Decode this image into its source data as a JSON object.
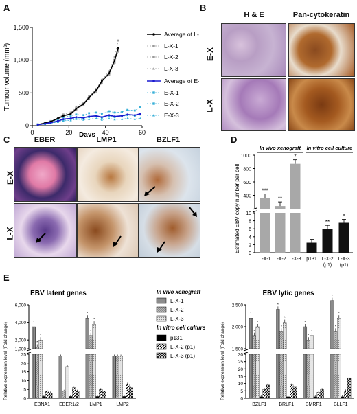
{
  "panels": {
    "a": "A",
    "b": "B",
    "c": "C",
    "d": "D",
    "e": "E"
  },
  "colors": {
    "lx": "#000000",
    "lx_series": "#9a9a9a",
    "ex": "#1a1ad0",
    "ex_series": "#39b0d8",
    "bar_grey": "#a8a8a8",
    "bar_black": "#111111"
  },
  "chart_data": [
    {
      "type": "line",
      "ylabel": "Tumour volume (mm³)",
      "xlabel": "Days",
      "xlim": [
        0,
        60
      ],
      "ylim": [
        0,
        1500
      ],
      "xticks": [
        0,
        20,
        40,
        60
      ],
      "yticks": [
        "0",
        "500",
        "1,000",
        "1,500"
      ],
      "series": [
        {
          "name": "Average of L-X",
          "x": [
            3,
            7,
            10,
            14,
            17,
            21,
            24,
            28,
            31,
            35,
            38,
            42,
            45,
            47
          ],
          "y": [
            15,
            40,
            60,
            110,
            150,
            180,
            260,
            330,
            430,
            540,
            680,
            800,
            1000,
            1190
          ]
        },
        {
          "name": "L-X-1",
          "x": [
            3,
            7,
            10,
            14,
            17,
            21,
            24,
            28,
            31,
            35,
            38,
            42,
            45,
            47
          ],
          "y": [
            10,
            35,
            55,
            100,
            140,
            170,
            240,
            320,
            410,
            520,
            650,
            780,
            960,
            1150
          ]
        },
        {
          "name": "L-X-2",
          "x": [
            3,
            7,
            10,
            14,
            17,
            21,
            24,
            28,
            31,
            35,
            38,
            42,
            45,
            47
          ],
          "y": [
            20,
            45,
            70,
            120,
            170,
            200,
            290,
            350,
            450,
            560,
            700,
            830,
            1050,
            1300
          ]
        },
        {
          "name": "L-X-3",
          "x": [
            3,
            7,
            10,
            14,
            17,
            21,
            24,
            28,
            31,
            35,
            38,
            42,
            45,
            47
          ],
          "y": [
            15,
            40,
            55,
            110,
            145,
            175,
            255,
            320,
            430,
            540,
            690,
            790,
            990,
            1130
          ]
        },
        {
          "name": "Average of E-X",
          "x": [
            3,
            7,
            10,
            14,
            17,
            21,
            24,
            28,
            31,
            35,
            38,
            42,
            45,
            49,
            52,
            56,
            59
          ],
          "y": [
            15,
            30,
            45,
            70,
            100,
            110,
            130,
            120,
            140,
            150,
            130,
            160,
            140,
            150,
            170,
            160,
            180
          ]
        },
        {
          "name": "E-X-1",
          "x": [
            3,
            7,
            10,
            14,
            17,
            21,
            24,
            28,
            31,
            35,
            38,
            42,
            45,
            49,
            52,
            56,
            59
          ],
          "y": [
            10,
            25,
            40,
            60,
            90,
            100,
            120,
            110,
            130,
            140,
            120,
            150,
            130,
            140,
            160,
            150,
            170
          ]
        },
        {
          "name": "E-X-2",
          "x": [
            3,
            7,
            10,
            14,
            17,
            21,
            24,
            28,
            31,
            35,
            38,
            42,
            45,
            49,
            52,
            56,
            59
          ],
          "y": [
            20,
            40,
            60,
            90,
            130,
            150,
            170,
            160,
            190,
            200,
            180,
            220,
            200,
            210,
            240,
            230,
            280
          ]
        },
        {
          "name": "E-X-3",
          "x": [
            3,
            7,
            10,
            14,
            17,
            21,
            24,
            28,
            31,
            35,
            38,
            42,
            45,
            49,
            52,
            56,
            59
          ],
          "y": [
            12,
            25,
            35,
            55,
            75,
            80,
            100,
            90,
            100,
            110,
            90,
            110,
            95,
            100,
            110,
            100,
            110
          ]
        }
      ]
    },
    {
      "type": "bar",
      "ylabel": "Estimated EBV copy number per cell",
      "categories": [
        "L-X-1",
        "L-X-2",
        "L-X-3",
        "p131",
        "L-X-2 (p1)",
        "L-X-3 (p1)"
      ],
      "values": [
        360,
        240,
        870,
        2.5,
        6,
        7.5
      ],
      "significance": [
        "***",
        "**",
        "*",
        "",
        "**",
        "*"
      ],
      "group_labels": [
        "In vivo xenograft",
        "In vitro cell culture"
      ],
      "yticks_top": [
        "400",
        "600",
        "800",
        "1000"
      ],
      "yticks_bottom": [
        "0",
        "2",
        "4",
        "6",
        "8",
        "10"
      ]
    },
    {
      "type": "bar",
      "title": "EBV latent genes",
      "ylabel": "Relative expression level (Fold change)",
      "categories": [
        "EBNA1",
        "EBER1/2",
        "LMP1",
        "LMP2"
      ],
      "series": [
        {
          "name": "L-X-1",
          "values": [
            3500,
            24,
            4500,
            24
          ]
        },
        {
          "name": "L-X-2",
          "values": [
            1200,
            4,
            2500,
            24
          ]
        },
        {
          "name": "L-X-3",
          "values": [
            2000,
            18,
            3800,
            24
          ]
        },
        {
          "name": "p131",
          "values": [
            1,
            1,
            1,
            1
          ]
        },
        {
          "name": "L-X-2 (p1)",
          "values": [
            4,
            6,
            5,
            8
          ]
        },
        {
          "name": "L-X-3 (p1)",
          "values": [
            3,
            4,
            4,
            6
          ]
        }
      ],
      "yticks_top": [
        "1,000",
        "2,000",
        "4,000",
        "6,000"
      ],
      "yticks_bottom": [
        "0",
        "5",
        "10",
        "15",
        "20",
        "25"
      ]
    },
    {
      "type": "bar",
      "title": "EBV lytic genes",
      "ylabel": "Relative expression level (Fold change)",
      "categories": [
        "BZLF1",
        "BRLF1",
        "BMRF1",
        "BLLF1"
      ],
      "series": [
        {
          "name": "L-X-1",
          "values": [
            2200,
            2400,
            2000,
            2600
          ]
        },
        {
          "name": "L-X-2",
          "values": [
            1800,
            1900,
            1700,
            1900
          ]
        },
        {
          "name": "L-X-3",
          "values": [
            2000,
            2100,
            1800,
            2200
          ]
        },
        {
          "name": "p131",
          "values": [
            1,
            1,
            1,
            1
          ]
        },
        {
          "name": "L-X-2 (p1)",
          "values": [
            6,
            9,
            4,
            5
          ]
        },
        {
          "name": "L-X-3 (p1)",
          "values": [
            9,
            8,
            6,
            14
          ]
        }
      ],
      "yticks_top": [
        "1,500",
        "2,000",
        "2,500"
      ],
      "yticks_bottom": [
        "0",
        "5",
        "10",
        "15",
        "20",
        "25",
        "30"
      ]
    }
  ],
  "legend_e": {
    "group_vivo": "In vivo xenograft",
    "group_vitro": "In vitro cell culture",
    "items": [
      "L-X-1",
      "L-X-2",
      "L-X-3",
      "p131",
      "L-X-2 (p1)",
      "L-X-3 (p1)"
    ]
  },
  "panel_b": {
    "col1": "H & E",
    "col2": "Pan-cytokeratin",
    "row1": "E-X",
    "row2": "L-X"
  },
  "panel_c": {
    "col1": "EBER",
    "col2": "LMP1",
    "col3": "BZLF1",
    "row1": "E-X",
    "row2": "L-X"
  }
}
